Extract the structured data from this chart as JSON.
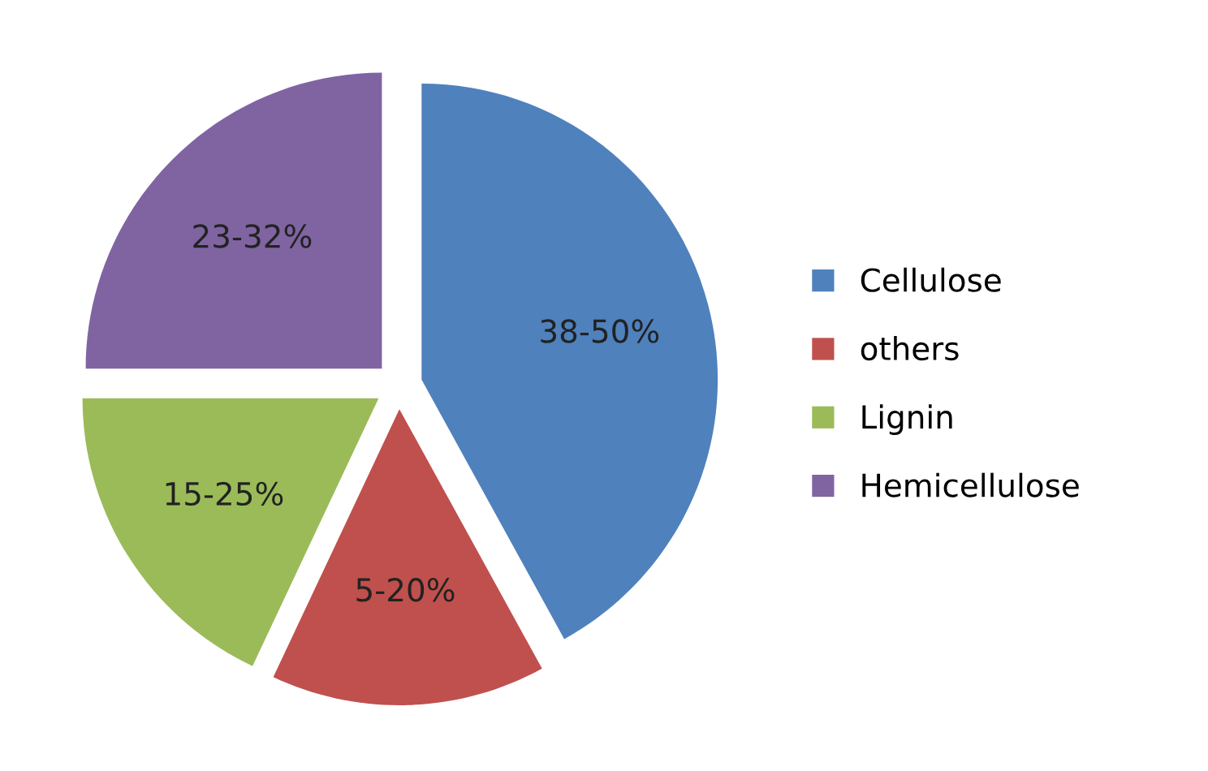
{
  "chart_data": {
    "type": "pie",
    "categories": [
      "Cellulose",
      "others",
      "Lignin",
      "Hemicellulose"
    ],
    "values": [
      42,
      15,
      18,
      25
    ],
    "colors": [
      "#4f81bd",
      "#c0504d",
      "#9bbb59",
      "#8064a2"
    ],
    "annotations": [
      {
        "text": "38-50%",
        "x": "Cellulose"
      },
      {
        "text": "5-20%",
        "x": "others"
      },
      {
        "text": "15-25%",
        "x": "Lignin"
      },
      {
        "text": "23-32%",
        "x": "Hemicellulose"
      }
    ],
    "legend": "right"
  }
}
